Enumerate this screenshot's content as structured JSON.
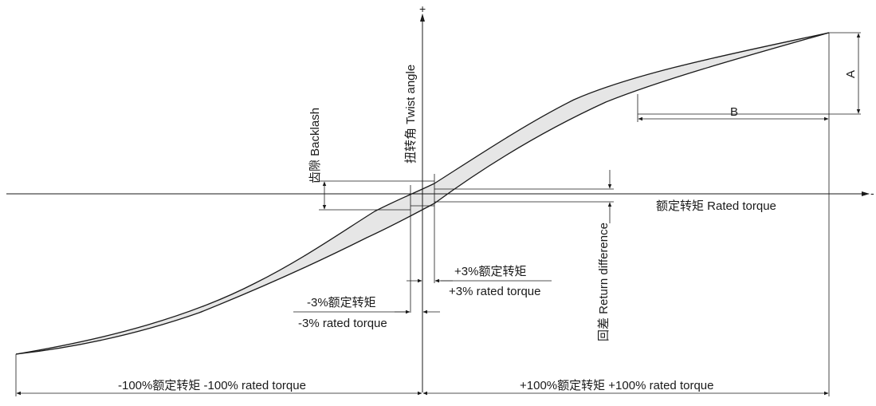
{
  "axes": {
    "x_label": "额定转矩 Rated torque",
    "y_label": "扭转角 Twist angle",
    "plus_sign": "+",
    "minus_sign": "-"
  },
  "labels": {
    "backlash": "齿隙 Backlash",
    "return_difference": "回差 Return difference",
    "dim_a": "A",
    "dim_b": "B",
    "pos3_cn": "+3%额定转矩",
    "pos3_en": "+3% rated torque",
    "neg3_cn": "-3%额定转矩",
    "neg3_en": "-3% rated torque",
    "neg100": "-100%额定转矩 -100% rated torque",
    "pos100": "+100%额定转矩 +100% rated torque"
  },
  "colors": {
    "line": "#1a1a1a",
    "hysteresis_fill": "#e6e6e6"
  }
}
